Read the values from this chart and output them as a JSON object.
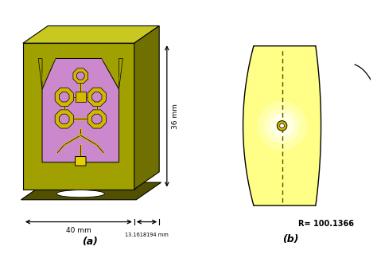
{
  "fig_width": 4.74,
  "fig_height": 3.29,
  "dpi": 100,
  "bg_color": "#ffffff",
  "panel_a_label": "(a)",
  "panel_b_label": "(b)",
  "dim_36mm": "36 mm",
  "dim_40mm": "40 mm",
  "dim_13mm": "13.1618194 mm",
  "radius_label": "R= 100.1366",
  "box_front": "#a0a000",
  "box_top": "#c8c820",
  "box_right": "#707000",
  "box_base": "#505000",
  "pink_board": "#cc88cc",
  "yellow_elem": "#d4b800",
  "connector_yellow": "#e8d000",
  "breast_yellow": "#ffff88",
  "glow_color": "#ffffff"
}
